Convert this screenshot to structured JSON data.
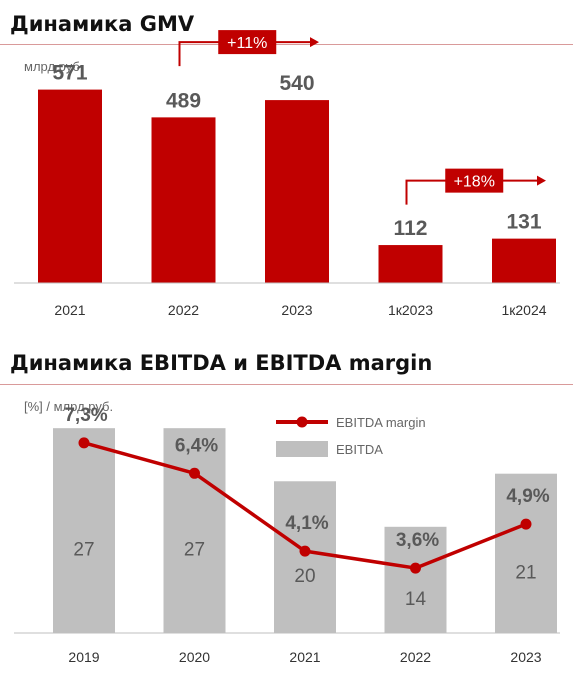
{
  "gmv": {
    "title": "Динамика GMV",
    "unit": "млрд руб."
  },
  "ebitda": {
    "title": "Динамика EBITDA и EBITDA margin",
    "unit": "[%] / млрд руб."
  },
  "colors": {
    "red": "#c00000",
    "gray": "#bfbfbf",
    "text": "#595959"
  },
  "chart_data": [
    {
      "type": "bar",
      "title": "Динамика GMV",
      "ylabel": "млрд руб.",
      "categories": [
        "2021",
        "2022",
        "2023",
        "1к2023",
        "1к2024"
      ],
      "values": [
        571,
        489,
        540,
        112,
        131
      ],
      "value_labels": [
        "571",
        "489",
        "540",
        "112",
        "131"
      ],
      "ylim": [
        0,
        620
      ],
      "grid": false,
      "annotations": [
        {
          "text": "+11%",
          "from": "2022",
          "to": "2023"
        },
        {
          "text": "+18%",
          "from": "1к2023",
          "to": "1к2024"
        }
      ]
    },
    {
      "type": "bar",
      "title": "Динамика EBITDA и EBITDA margin",
      "ylabel": "[%] / млрд руб.",
      "categories": [
        "2019",
        "2020",
        "2021",
        "2022",
        "2023"
      ],
      "legend_placement": "top-right",
      "grid": false,
      "series": [
        {
          "name": "EBITDA",
          "type": "bar",
          "values": [
            27,
            27,
            20,
            14,
            21
          ],
          "value_labels": [
            "27",
            "27",
            "20",
            "14",
            "21"
          ],
          "ylim": [
            0,
            29
          ]
        },
        {
          "name": "EBITDA margin",
          "type": "line",
          "values": [
            7.3,
            6.4,
            4.1,
            3.6,
            4.9
          ],
          "value_labels": [
            "7,3%",
            "6,4%",
            "4,1%",
            "3,6%",
            "4,9%"
          ],
          "ylim": [
            1.8,
            8.3
          ]
        }
      ]
    }
  ]
}
